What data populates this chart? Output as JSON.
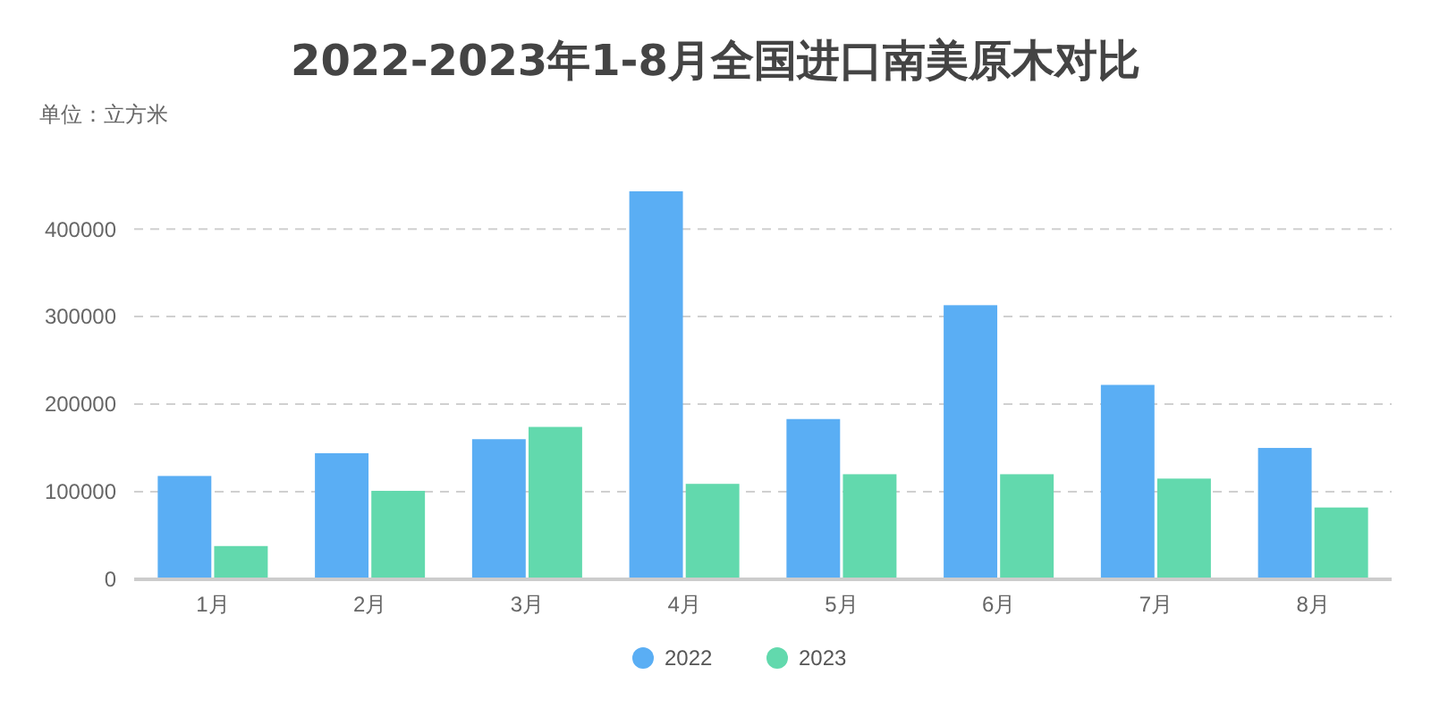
{
  "chart_data": {
    "type": "bar",
    "title": "2022-2023年1-8月全国进口南美原木对比",
    "ylabel": "单位：立方米",
    "categories": [
      "1月",
      "2月",
      "3月",
      "4月",
      "5月",
      "6月",
      "7月",
      "8月"
    ],
    "series": [
      {
        "name": "2022",
        "color": "#5aaef4",
        "values": [
          118000,
          144000,
          160000,
          443000,
          183000,
          313000,
          222000,
          150000
        ]
      },
      {
        "name": "2023",
        "color": "#62d9ad",
        "values": [
          38000,
          101000,
          174000,
          109000,
          120000,
          120000,
          115000,
          82000
        ]
      }
    ],
    "ylim": [
      0,
      443000
    ],
    "yticks": [
      0,
      100000,
      200000,
      300000,
      400000
    ],
    "grid": "y",
    "legend": "bottom",
    "marker": "circle"
  }
}
